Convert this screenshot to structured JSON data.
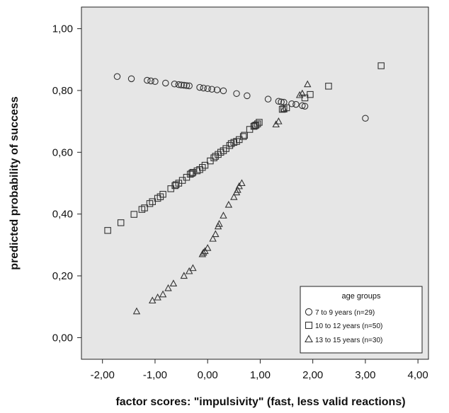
{
  "chart_data": {
    "type": "scatter",
    "title": "",
    "xlabel": "factor scores: \"impulsivity\" (fast, less valid reactions)",
    "ylabel": "predicted probability of success",
    "xlim": [
      -2.4,
      4.2
    ],
    "ylim": [
      -0.07,
      1.07
    ],
    "x_ticks": [
      -2.0,
      -1.0,
      0.0,
      1.0,
      2.0,
      3.0,
      4.0
    ],
    "x_tick_labels": [
      "-2,00",
      "-1,00",
      "0,00",
      "1,00",
      "2,00",
      "3,00",
      "4,00"
    ],
    "y_ticks": [
      0.0,
      0.2,
      0.4,
      0.6,
      0.8,
      1.0
    ],
    "y_tick_labels": [
      "0,00",
      "0,20",
      "0,40",
      "0,60",
      "0,80",
      "1,00"
    ],
    "grid": false,
    "plot_background": "#e6e6e6",
    "marker_color": "#333333",
    "legend": {
      "title": "age groups",
      "position": "bottom-right"
    },
    "series": [
      {
        "name": "7 to 9 years (n=29)",
        "marker": "circle",
        "points": [
          [
            -1.72,
            0.845
          ],
          [
            -1.45,
            0.838
          ],
          [
            -1.15,
            0.833
          ],
          [
            -1.08,
            0.831
          ],
          [
            -1.0,
            0.829
          ],
          [
            -0.8,
            0.824
          ],
          [
            -0.63,
            0.821
          ],
          [
            -0.55,
            0.819
          ],
          [
            -0.5,
            0.818
          ],
          [
            -0.45,
            0.817
          ],
          [
            -0.4,
            0.816
          ],
          [
            -0.35,
            0.815
          ],
          [
            -0.15,
            0.81
          ],
          [
            -0.08,
            0.808
          ],
          [
            0.0,
            0.806
          ],
          [
            0.08,
            0.804
          ],
          [
            0.18,
            0.802
          ],
          [
            0.3,
            0.799
          ],
          [
            0.55,
            0.79
          ],
          [
            0.75,
            0.783
          ],
          [
            1.15,
            0.772
          ],
          [
            1.35,
            0.765
          ],
          [
            1.45,
            0.762
          ],
          [
            1.6,
            0.757
          ],
          [
            1.68,
            0.755
          ],
          [
            1.8,
            0.751
          ],
          [
            1.85,
            0.749
          ],
          [
            3.0,
            0.71
          ],
          [
            1.4,
            0.763
          ]
        ]
      },
      {
        "name": "10 to 12 years (n=50)",
        "marker": "square",
        "points": [
          [
            -1.9,
            0.347
          ],
          [
            -1.65,
            0.372
          ],
          [
            -1.4,
            0.399
          ],
          [
            -1.25,
            0.415
          ],
          [
            -1.1,
            0.434
          ],
          [
            -1.05,
            0.44
          ],
          [
            -0.95,
            0.451
          ],
          [
            -0.85,
            0.464
          ],
          [
            -0.7,
            0.482
          ],
          [
            -0.62,
            0.492
          ],
          [
            -0.55,
            0.5
          ],
          [
            -0.48,
            0.509
          ],
          [
            -0.4,
            0.519
          ],
          [
            -0.33,
            0.529
          ],
          [
            -0.28,
            0.535
          ],
          [
            -0.15,
            0.544
          ],
          [
            -0.1,
            0.551
          ],
          [
            -0.05,
            0.558
          ],
          [
            0.05,
            0.572
          ],
          [
            0.12,
            0.582
          ],
          [
            0.2,
            0.593
          ],
          [
            0.25,
            0.6
          ],
          [
            0.3,
            0.605
          ],
          [
            0.35,
            0.612
          ],
          [
            0.42,
            0.622
          ],
          [
            0.5,
            0.632
          ],
          [
            0.55,
            0.635
          ],
          [
            0.6,
            0.641
          ],
          [
            0.68,
            0.651
          ],
          [
            0.8,
            0.674
          ],
          [
            0.88,
            0.684
          ],
          [
            0.92,
            0.688
          ],
          [
            0.95,
            0.692
          ],
          [
            0.98,
            0.697
          ],
          [
            1.45,
            0.74
          ],
          [
            1.5,
            0.744
          ],
          [
            1.85,
            0.776
          ],
          [
            1.95,
            0.787
          ],
          [
            2.3,
            0.814
          ],
          [
            3.3,
            0.88
          ],
          [
            -0.3,
            0.532
          ],
          [
            0.45,
            0.628
          ],
          [
            0.9,
            0.686
          ],
          [
            1.42,
            0.739
          ],
          [
            -0.6,
            0.495
          ],
          [
            -0.9,
            0.456
          ],
          [
            0.15,
            0.587
          ],
          [
            -1.2,
            0.42
          ],
          [
            0.7,
            0.655
          ],
          [
            -0.2,
            0.54
          ]
        ]
      },
      {
        "name": "13 to 15 years (n=30)",
        "marker": "triangle",
        "points": [
          [
            -1.35,
            0.085
          ],
          [
            -1.05,
            0.12
          ],
          [
            -0.95,
            0.13
          ],
          [
            -0.85,
            0.14
          ],
          [
            -0.75,
            0.16
          ],
          [
            -0.65,
            0.175
          ],
          [
            -0.45,
            0.2
          ],
          [
            -0.35,
            0.215
          ],
          [
            -0.28,
            0.225
          ],
          [
            -0.1,
            0.27
          ],
          [
            -0.05,
            0.28
          ],
          [
            0.0,
            0.29
          ],
          [
            0.1,
            0.32
          ],
          [
            0.15,
            0.335
          ],
          [
            0.2,
            0.36
          ],
          [
            0.22,
            0.368
          ],
          [
            0.3,
            0.395
          ],
          [
            0.4,
            0.43
          ],
          [
            0.5,
            0.455
          ],
          [
            0.55,
            0.47
          ],
          [
            0.6,
            0.49
          ],
          [
            0.65,
            0.5
          ],
          [
            1.3,
            0.69
          ],
          [
            1.35,
            0.7
          ],
          [
            1.45,
            0.74
          ],
          [
            1.75,
            0.785
          ],
          [
            1.8,
            0.79
          ],
          [
            1.9,
            0.82
          ],
          [
            -0.08,
            0.275
          ],
          [
            0.57,
            0.478
          ]
        ]
      }
    ]
  }
}
